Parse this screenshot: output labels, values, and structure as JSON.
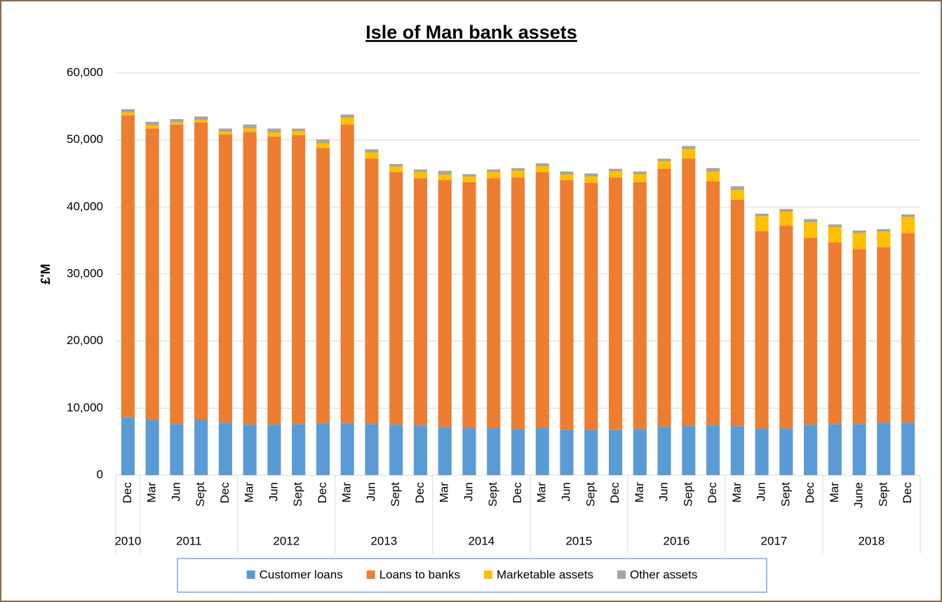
{
  "chart_data": {
    "type": "stacked_bar",
    "title": "Isle of Man bank assets",
    "y_axis_label": "£'M",
    "categories": [
      "Dec",
      "Mar",
      "Jun",
      "Sept",
      "Dec",
      "Mar",
      "Jun",
      "Sept",
      "Dec",
      "Mar",
      "Jun",
      "Sept",
      "Dec",
      "Mar",
      "Jun",
      "Sept",
      "Dec",
      "Mar",
      "Jun",
      "Sept",
      "Dec",
      "Mar",
      "Jun",
      "Sept",
      "Dec",
      "Mar",
      "Jun",
      "Sept",
      "Dec",
      "Mar",
      "June",
      "Sept",
      "Dec"
    ],
    "category_groups": [
      {
        "label": "2010",
        "count": 1
      },
      {
        "label": "2011",
        "count": 4
      },
      {
        "label": "2012",
        "count": 4
      },
      {
        "label": "2013",
        "count": 4
      },
      {
        "label": "2014",
        "count": 4
      },
      {
        "label": "2015",
        "count": 4
      },
      {
        "label": "2016",
        "count": 4
      },
      {
        "label": "2017",
        "count": 4
      },
      {
        "label": "2018",
        "count": 4
      }
    ],
    "series": [
      {
        "name": "Customer loans",
        "color": "#5b9bd5",
        "values": [
          8600,
          8200,
          7600,
          8200,
          7800,
          7500,
          7500,
          7600,
          7700,
          7700,
          7600,
          7500,
          7400,
          7100,
          7000,
          7000,
          6800,
          7000,
          6700,
          6700,
          6700,
          6800,
          7200,
          7300,
          7400,
          7300,
          6900,
          6900,
          7500,
          7600,
          7600,
          7800,
          7800
        ]
      },
      {
        "name": "Loans to banks",
        "color": "#ed7d31",
        "values": [
          45100,
          43500,
          44700,
          44400,
          43000,
          43700,
          43000,
          43100,
          41100,
          44600,
          39600,
          37700,
          36900,
          36900,
          36700,
          37300,
          37600,
          38200,
          37300,
          36900,
          37700,
          36900,
          38500,
          39900,
          36400,
          33800,
          29500,
          30300,
          27900,
          27100,
          26100,
          26200,
          28300
        ]
      },
      {
        "name": "Marketable assets",
        "color": "#ffc000",
        "values": [
          400,
          500,
          300,
          400,
          400,
          500,
          600,
          600,
          700,
          1000,
          900,
          800,
          900,
          800,
          800,
          900,
          1000,
          900,
          800,
          900,
          900,
          1200,
          1100,
          1400,
          1500,
          1400,
          2200,
          2100,
          2300,
          2300,
          2400,
          2300,
          2400
        ]
      },
      {
        "name": "Other assets",
        "color": "#a5a5a5",
        "values": [
          500,
          500,
          500,
          500,
          500,
          600,
          600,
          400,
          600,
          500,
          500,
          400,
          400,
          600,
          400,
          400,
          400,
          400,
          500,
          500,
          400,
          400,
          400,
          500,
          500,
          600,
          400,
          400,
          500,
          400,
          400,
          400,
          400
        ]
      }
    ],
    "ylim": [
      0,
      60000
    ],
    "yticks": [
      0,
      {
        "value": 10000,
        "label": "10,000"
      },
      {
        "value": 20000,
        "label": "20,000"
      },
      {
        "value": 30000,
        "label": "30,000"
      },
      {
        "value": 40000,
        "label": "40,000"
      },
      {
        "value": 50000,
        "label": "50,000"
      },
      {
        "value": 60000,
        "label": "60,000"
      }
    ],
    "grid": true,
    "legend": "bottom"
  }
}
